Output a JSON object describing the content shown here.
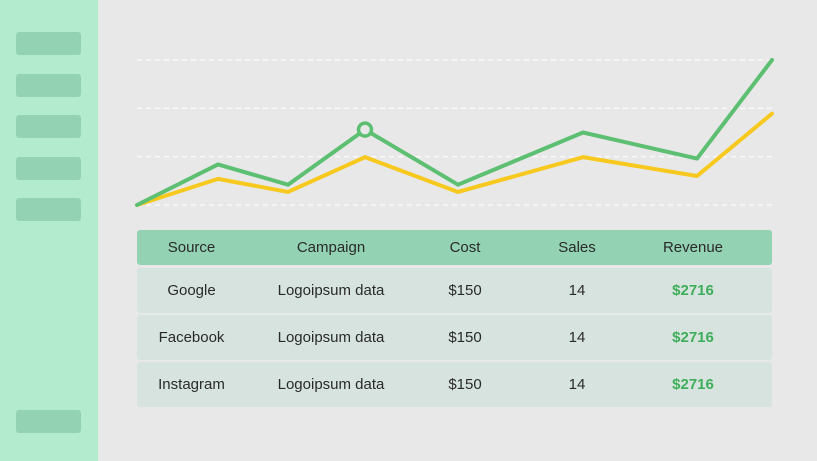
{
  "colors": {
    "sidebar_bg": "#b3ebcf",
    "nav_item": "#93d3b3",
    "line_green": "#5dbf72",
    "line_yellow": "#f7c91f",
    "revenue_text": "#3fae5a"
  },
  "sidebar": {
    "item_count": 6
  },
  "chart_data": {
    "type": "line",
    "title": "",
    "xlabel": "",
    "ylabel": "",
    "grid": true,
    "x": [
      0,
      1,
      2,
      3,
      4,
      5,
      6,
      7
    ],
    "ylim": [
      0,
      100
    ],
    "series": [
      {
        "values": [
          0,
          28,
          14,
          52,
          14,
          50,
          32,
          100
        ],
        "highlight_index": 3
      },
      {
        "values": [
          0,
          18,
          9,
          33,
          9,
          33,
          20,
          63
        ]
      }
    ]
  },
  "table": {
    "headers": [
      "Source",
      "Campaign",
      "Cost",
      "Sales",
      "Revenue"
    ],
    "rows": [
      {
        "source": "Google",
        "campaign": "Logoipsum data",
        "cost": "$150",
        "sales": "14",
        "revenue": "$2716"
      },
      {
        "source": "Facebook",
        "campaign": "Logoipsum data",
        "cost": "$150",
        "sales": "14",
        "revenue": "$2716"
      },
      {
        "source": "Instagram",
        "campaign": "Logoipsum data",
        "cost": "$150",
        "sales": "14",
        "revenue": "$2716"
      }
    ]
  }
}
